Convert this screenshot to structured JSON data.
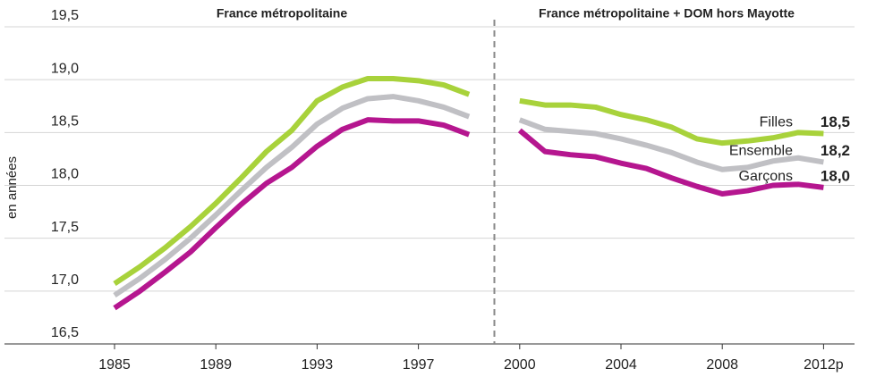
{
  "chart_data": {
    "type": "line",
    "y_label": "en années",
    "section_titles": [
      "France métropolitaine",
      "France métropolitaine + DOM hors Mayotte"
    ],
    "categories": [
      "1985",
      null,
      null,
      null,
      "1989",
      null,
      null,
      null,
      "1993",
      null,
      null,
      null,
      "1997",
      null,
      null,
      null,
      "2000",
      null,
      null,
      null,
      "2004",
      null,
      null,
      null,
      "2008",
      null,
      null,
      null,
      "2012p"
    ],
    "ylim": [
      16.5,
      19.5
    ],
    "yticks": [
      {
        "value": 16.5,
        "label": "16,5"
      },
      {
        "value": 17.0,
        "label": "17,0"
      },
      {
        "value": 17.5,
        "label": "17,5"
      },
      {
        "value": 18.0,
        "label": "18,0"
      },
      {
        "value": 18.5,
        "label": "18,5"
      },
      {
        "value": 19.0,
        "label": "19,0"
      },
      {
        "value": 19.5,
        "label": "19,5"
      }
    ],
    "grid": true,
    "break_index": 15,
    "series": [
      {
        "name": "Filles",
        "color": "#a8d23b",
        "end_label": "18,5",
        "values": [
          17.07,
          17.23,
          17.41,
          17.61,
          17.83,
          18.07,
          18.32,
          18.52,
          18.8,
          18.93,
          19.01,
          19.01,
          18.99,
          18.95,
          18.86,
          null,
          18.8,
          18.76,
          18.76,
          18.74,
          18.67,
          18.62,
          18.55,
          18.44,
          18.4,
          18.42,
          18.45,
          18.5,
          18.49
        ]
      },
      {
        "name": "Ensemble",
        "color": "#c0c0c4",
        "end_label": "18,2",
        "values": [
          16.96,
          17.12,
          17.3,
          17.5,
          17.72,
          17.95,
          18.17,
          18.36,
          18.58,
          18.73,
          18.82,
          18.84,
          18.8,
          18.74,
          18.65,
          null,
          18.62,
          18.53,
          18.51,
          18.49,
          18.44,
          18.38,
          18.31,
          18.22,
          18.15,
          18.17,
          18.23,
          18.26,
          18.22
        ]
      },
      {
        "name": "Garçons",
        "color": "#b5168f",
        "end_label": "18,0",
        "values": [
          16.84,
          17.0,
          17.18,
          17.37,
          17.6,
          17.82,
          18.02,
          18.17,
          18.37,
          18.53,
          18.62,
          18.61,
          18.61,
          18.57,
          18.48,
          null,
          18.52,
          18.32,
          18.29,
          18.27,
          18.21,
          18.16,
          18.07,
          17.99,
          17.92,
          17.95,
          18.0,
          18.01,
          17.98
        ]
      }
    ]
  }
}
